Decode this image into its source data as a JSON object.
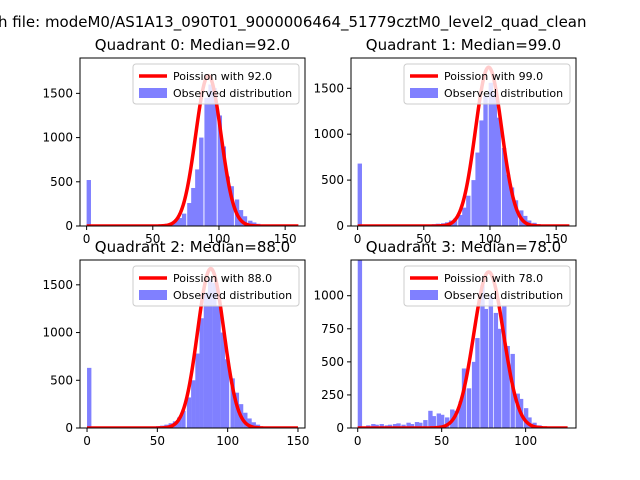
{
  "figure": {
    "suptitle": "h file: modeM0/AS1A13_090T01_9000006464_51779cztM0_level2_quad_clean"
  },
  "chart_data": [
    {
      "type": "bar",
      "title": "Quadrant 0: Median=92.0",
      "xlim": [
        -5,
        165
      ],
      "ylim": [
        0,
        1900
      ],
      "xticks": [
        0,
        50,
        100,
        150
      ],
      "yticks": [
        0,
        500,
        1000,
        1500
      ],
      "bin_width": 3.3,
      "hist": {
        "name": "Observed distribution",
        "color": "#8080ff",
        "bins": [
          [
            0,
            520
          ],
          [
            49,
            10
          ],
          [
            53,
            15
          ],
          [
            56,
            20
          ],
          [
            59,
            25
          ],
          [
            63,
            40
          ],
          [
            66,
            60
          ],
          [
            69,
            90
          ],
          [
            72,
            140
          ],
          [
            76,
            260
          ],
          [
            79,
            430
          ],
          [
            82,
            640
          ],
          [
            85,
            1000
          ],
          [
            89,
            1450
          ],
          [
            92,
            1600
          ],
          [
            95,
            1560
          ],
          [
            99,
            1250
          ],
          [
            102,
            900
          ],
          [
            105,
            560
          ],
          [
            108,
            450
          ],
          [
            112,
            300
          ],
          [
            115,
            180
          ],
          [
            118,
            110
          ],
          [
            122,
            60
          ],
          [
            125,
            40
          ],
          [
            128,
            25
          ],
          [
            132,
            15
          ],
          [
            135,
            10
          ]
        ]
      },
      "curve": {
        "name": "Poission with 92.0",
        "color": "#ff0000",
        "mean": 92,
        "peak": 1700,
        "x_range": [
          0,
          160
        ]
      },
      "legend": [
        {
          "label": "Poission with 92.0"
        },
        {
          "label": "Observed distribution"
        }
      ]
    },
    {
      "type": "bar",
      "title": "Quadrant 1: Median=99.0",
      "xlim": [
        -5,
        165
      ],
      "ylim": [
        0,
        1830
      ],
      "xticks": [
        0,
        50,
        100,
        150
      ],
      "yticks": [
        0,
        500,
        1000,
        1500
      ],
      "bin_width": 3.3,
      "hist": {
        "name": "Observed distribution",
        "color": "#8080ff",
        "bins": [
          [
            0,
            680
          ],
          [
            53,
            15
          ],
          [
            56,
            20
          ],
          [
            59,
            25
          ],
          [
            63,
            30
          ],
          [
            66,
            40
          ],
          [
            69,
            60
          ],
          [
            72,
            80
          ],
          [
            76,
            120
          ],
          [
            79,
            200
          ],
          [
            82,
            330
          ],
          [
            86,
            500
          ],
          [
            89,
            800
          ],
          [
            92,
            1150
          ],
          [
            95,
            1420
          ],
          [
            99,
            1560
          ],
          [
            102,
            1450
          ],
          [
            105,
            1180
          ],
          [
            109,
            850
          ],
          [
            112,
            560
          ],
          [
            115,
            420
          ],
          [
            118,
            280
          ],
          [
            122,
            170
          ],
          [
            125,
            110
          ],
          [
            128,
            60
          ],
          [
            132,
            35
          ],
          [
            135,
            20
          ],
          [
            138,
            10
          ]
        ]
      },
      "curve": {
        "name": "Poission with 99.0",
        "color": "#ff0000",
        "mean": 99,
        "peak": 1730,
        "x_range": [
          0,
          160
        ]
      },
      "legend": [
        {
          "label": "Poission with 99.0"
        },
        {
          "label": "Observed distribution"
        }
      ]
    },
    {
      "type": "bar",
      "title": "Quadrant 2: Median=88.0",
      "xlim": [
        -5,
        155
      ],
      "ylim": [
        0,
        1760
      ],
      "xticks": [
        0,
        50,
        100,
        150
      ],
      "yticks": [
        0,
        500,
        1000,
        1500
      ],
      "bin_width": 3.1,
      "hist": {
        "name": "Observed distribution",
        "color": "#8080ff",
        "bins": [
          [
            0,
            630
          ],
          [
            46,
            15
          ],
          [
            49,
            20
          ],
          [
            52,
            25
          ],
          [
            55,
            35
          ],
          [
            58,
            50
          ],
          [
            61,
            70
          ],
          [
            64,
            110
          ],
          [
            67,
            180
          ],
          [
            71,
            320
          ],
          [
            74,
            500
          ],
          [
            77,
            780
          ],
          [
            80,
            1150
          ],
          [
            83,
            1420
          ],
          [
            86,
            1560
          ],
          [
            89,
            1520
          ],
          [
            92,
            1280
          ],
          [
            95,
            1000
          ],
          [
            98,
            720
          ],
          [
            102,
            520
          ],
          [
            105,
            370
          ],
          [
            108,
            250
          ],
          [
            111,
            160
          ],
          [
            114,
            100
          ],
          [
            117,
            60
          ],
          [
            120,
            35
          ],
          [
            123,
            15
          ]
        ]
      },
      "curve": {
        "name": "Poission with 88.0",
        "color": "#ff0000",
        "mean": 88,
        "peak": 1670,
        "x_range": [
          0,
          150
        ]
      },
      "legend": [
        {
          "label": "Poission with 88.0"
        },
        {
          "label": "Observed distribution"
        }
      ]
    },
    {
      "type": "bar",
      "title": "Quadrant 3: Median=78.0",
      "xlim": [
        -4,
        130
      ],
      "ylim": [
        0,
        1270
      ],
      "xticks": [
        0,
        50,
        100
      ],
      "yticks": [
        0,
        250,
        500,
        750,
        1000
      ],
      "bin_width": 2.6,
      "hist": {
        "name": "Observed distribution",
        "color": "#8080ff",
        "bins": [
          [
            0,
            1270
          ],
          [
            5,
            20
          ],
          [
            8,
            30
          ],
          [
            10,
            25
          ],
          [
            13,
            30
          ],
          [
            16,
            20
          ],
          [
            18,
            25
          ],
          [
            21,
            30
          ],
          [
            23,
            35
          ],
          [
            26,
            25
          ],
          [
            29,
            40
          ],
          [
            31,
            30
          ],
          [
            34,
            45
          ],
          [
            36,
            40
          ],
          [
            39,
            60
          ],
          [
            42,
            130
          ],
          [
            44,
            90
          ],
          [
            47,
            110
          ],
          [
            49,
            100
          ],
          [
            52,
            80
          ],
          [
            55,
            140
          ],
          [
            57,
            130
          ],
          [
            60,
            200
          ],
          [
            62,
            450
          ],
          [
            65,
            300
          ],
          [
            68,
            500
          ],
          [
            70,
            680
          ],
          [
            73,
            1080
          ],
          [
            75,
            900
          ],
          [
            78,
            1000
          ],
          [
            81,
            870
          ],
          [
            83,
            750
          ],
          [
            86,
            920
          ],
          [
            88,
            620
          ],
          [
            91,
            560
          ],
          [
            94,
            260
          ],
          [
            96,
            220
          ],
          [
            99,
            150
          ],
          [
            101,
            80
          ],
          [
            104,
            40
          ],
          [
            107,
            20
          ]
        ]
      },
      "curve": {
        "name": "Poission with 78.0",
        "color": "#ff0000",
        "mean": 78,
        "peak": 1180,
        "x_range": [
          0,
          125
        ]
      },
      "legend": [
        {
          "label": "Poission with 78.0"
        },
        {
          "label": "Observed distribution"
        }
      ]
    }
  ]
}
